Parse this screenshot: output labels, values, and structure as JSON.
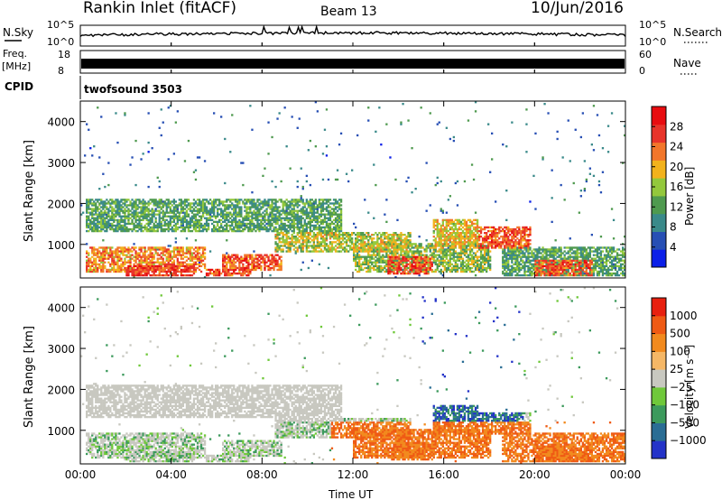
{
  "header": {
    "title": "Rankin Inlet (fitACF)",
    "beam": "Beam 13",
    "date": "10/Jun/2016"
  },
  "top_panels": {
    "nsky_label": "N.Sky",
    "nsearch_label": "N.Search",
    "nsky_ticks": [
      "10^5",
      "10^0"
    ],
    "nsearch_ticks": [
      "10^5",
      "10^0"
    ],
    "freq_label_line1": "Freq.",
    "freq_label_line2": "[MHz]",
    "freq_ticks": [
      "18",
      "8"
    ],
    "nave_label": "Nave",
    "nave_ticks": [
      "60",
      "0"
    ],
    "cpid_label": "CPID",
    "cpid_value": "twofsound 3503"
  },
  "chart_data": [
    {
      "type": "heatmap",
      "title": "Power",
      "ylabel": "Slant Range [km]",
      "xlabel": "",
      "x_ticks": [
        "00:00",
        "04:00",
        "08:00",
        "12:00",
        "16:00",
        "20:00",
        "00:00"
      ],
      "ylim": [
        180,
        4500
      ],
      "y_ticks": [
        1000,
        2000,
        3000,
        4000
      ],
      "colorbar_label": "Power [dB]",
      "colorbar_ticks": [
        4,
        8,
        12,
        16,
        20,
        24,
        28
      ],
      "colorbar_colors": [
        "#0b1fe8",
        "#274fb4",
        "#3a8a8a",
        "#4f9a4f",
        "#93c83c",
        "#f2b21c",
        "#f2762a",
        "#e8342a",
        "#e80c10"
      ]
    },
    {
      "type": "heatmap",
      "title": "Velocity",
      "ylabel": "Slant Range [km]",
      "xlabel": "Time UT",
      "x_ticks": [
        "00:00",
        "04:00",
        "08:00",
        "12:00",
        "16:00",
        "20:00",
        "00:00"
      ],
      "ylim": [
        180,
        4500
      ],
      "y_ticks": [
        1000,
        2000,
        3000,
        4000
      ],
      "colorbar_label": "Velocity [m s⁻¹]",
      "colorbar_ticks": [
        "1000",
        "500",
        "100",
        "25",
        "−25",
        "−100",
        "−500",
        "−1000"
      ],
      "colorbar_colors": [
        "#2433c8",
        "#2a6d94",
        "#3c9a5c",
        "#6fc83a",
        "#c8c8c0",
        "#f5b766",
        "#f28a1e",
        "#ef5a14",
        "#e8200f"
      ]
    }
  ]
}
